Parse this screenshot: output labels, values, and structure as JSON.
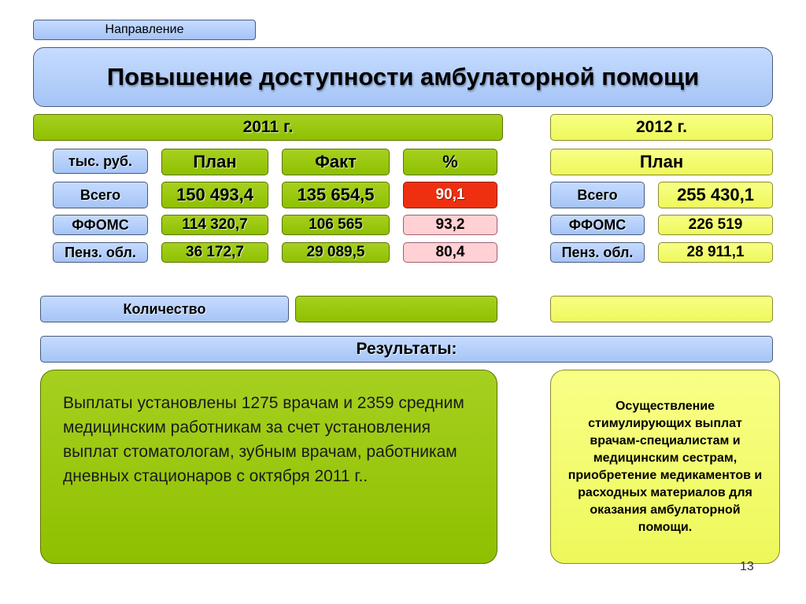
{
  "direction_label": "Направление",
  "title": "Повышение доступности амбулаторной помощи",
  "year_2011": "2011 г.",
  "year_2012": "2012 г.",
  "headers_2011": {
    "unit": "тыс. руб.",
    "plan": "План",
    "fact": "Факт",
    "percent": "%"
  },
  "header_2012_plan": "План",
  "rows_2011": [
    {
      "label": "Всего",
      "plan": "150 493,4",
      "fact": "135 654,5",
      "percent": "90,1"
    },
    {
      "label": "ФФОМС",
      "plan": "114 320,7",
      "fact": "106 565",
      "percent": "93,2"
    },
    {
      "label": "Пенз. обл.",
      "plan": "36 172,7",
      "fact": "29 089,5",
      "percent": "80,4"
    }
  ],
  "rows_2012": [
    {
      "label": "Всего",
      "plan": "255 430,1"
    },
    {
      "label": "ФФОМС",
      "plan": "226 519"
    },
    {
      "label": "Пенз. обл.",
      "plan": "28 911,1"
    }
  ],
  "quantity_label": "Количество",
  "results_label": "Результаты:",
  "results_2011_text": "Выплаты установлены 1275 врачам и 2359 средним медицинским работникам за счет установления выплат стоматологам, зубным врачам, работникам дневных стационаров с октября 2011 г..",
  "results_2012_text": "Осуществление стимулирующих выплат врачам-специалистам и медицинским сестрам, приобретение медикаментов и расходных материалов для оказания амбулаторной помощи.",
  "page_number": "13",
  "colors": {
    "blue": "#a9c7f7",
    "green": "#99c400",
    "yellow": "#f2fb6a",
    "red": "#ee3010",
    "pink": "#ffd0d4"
  }
}
